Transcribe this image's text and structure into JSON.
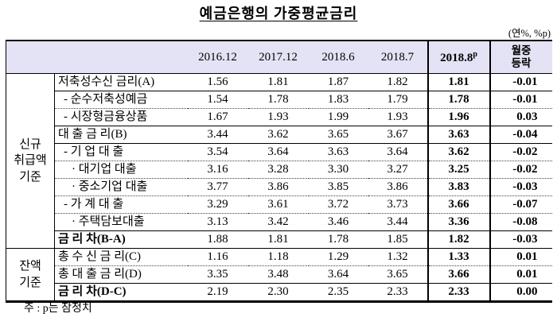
{
  "title": "예금은행의 가중평균금리",
  "unit_note": "(연%, %p)",
  "footnote": "주 : p는 잠정치",
  "table": {
    "columns": [
      "2016.12",
      "2017.12",
      "2018.6",
      "2018.7",
      "2018.8",
      "월중\n등락"
    ],
    "header_sup": "p",
    "groups": [
      {
        "label": "신규\n취급액\n기준",
        "span": 10
      },
      {
        "label": "잔액\n기준",
        "span": 3
      }
    ],
    "rows": [
      {
        "group": 0,
        "label": "저축성수신 금리(A)",
        "indent": 0,
        "bold": false,
        "sep": "solid",
        "values": [
          "1.56",
          "1.81",
          "1.87",
          "1.82",
          "1.81",
          "-0.01"
        ]
      },
      {
        "label": "- 순수저축성예금",
        "indent": 1,
        "bold": false,
        "sep": "dotted",
        "values": [
          "1.54",
          "1.78",
          "1.83",
          "1.79",
          "1.78",
          "-0.01"
        ]
      },
      {
        "label": "- 시장형금융상품",
        "indent": 1,
        "bold": false,
        "sep": "solid",
        "values": [
          "1.67",
          "1.93",
          "1.99",
          "1.93",
          "1.96",
          "0.03"
        ]
      },
      {
        "label": "대 출 금 리(B)",
        "indent": 0,
        "bold": false,
        "sep": "solid",
        "values": [
          "3.44",
          "3.62",
          "3.65",
          "3.67",
          "3.63",
          "-0.04"
        ]
      },
      {
        "label": "- 기 업 대 출",
        "indent": 1,
        "bold": false,
        "sep": "dotted",
        "values": [
          "3.54",
          "3.64",
          "3.63",
          "3.64",
          "3.62",
          "-0.02"
        ]
      },
      {
        "label": "· 대기업 대출",
        "indent": 2,
        "bold": false,
        "sep": "dotted",
        "values": [
          "3.16",
          "3.28",
          "3.30",
          "3.27",
          "3.25",
          "-0.02"
        ]
      },
      {
        "label": "· 중소기업 대출",
        "indent": 2,
        "bold": false,
        "sep": "dotted",
        "values": [
          "3.77",
          "3.86",
          "3.85",
          "3.86",
          "3.83",
          "-0.03"
        ]
      },
      {
        "label": "- 가 계 대 출",
        "indent": 1,
        "bold": false,
        "sep": "dotted",
        "values": [
          "3.29",
          "3.61",
          "3.72",
          "3.73",
          "3.66",
          "-0.07"
        ]
      },
      {
        "label": "· 주택담보대출",
        "indent": 2,
        "bold": false,
        "sep": "solid",
        "values": [
          "3.13",
          "3.42",
          "3.46",
          "3.44",
          "3.36",
          "-0.08"
        ]
      },
      {
        "label": "금 리 차(B-A)",
        "indent": 0,
        "bold": true,
        "sep": "solid",
        "values": [
          "1.88",
          "1.81",
          "1.78",
          "1.85",
          "1.82",
          "-0.03"
        ]
      },
      {
        "group": 1,
        "label": "총 수 신 금 리(C)",
        "indent": 0,
        "bold": false,
        "sep": "dotted",
        "values": [
          "1.16",
          "1.18",
          "1.29",
          "1.32",
          "1.33",
          "0.01"
        ]
      },
      {
        "label": "총 대 출 금 리(D)",
        "indent": 0,
        "bold": false,
        "sep": "solid",
        "values": [
          "3.35",
          "3.48",
          "3.64",
          "3.65",
          "3.66",
          "0.01"
        ]
      },
      {
        "label": "금 리 차(D-C)",
        "indent": 0,
        "bold": true,
        "sep": "thick",
        "values": [
          "2.19",
          "2.30",
          "2.35",
          "2.33",
          "2.33",
          "0.00"
        ]
      }
    ]
  }
}
